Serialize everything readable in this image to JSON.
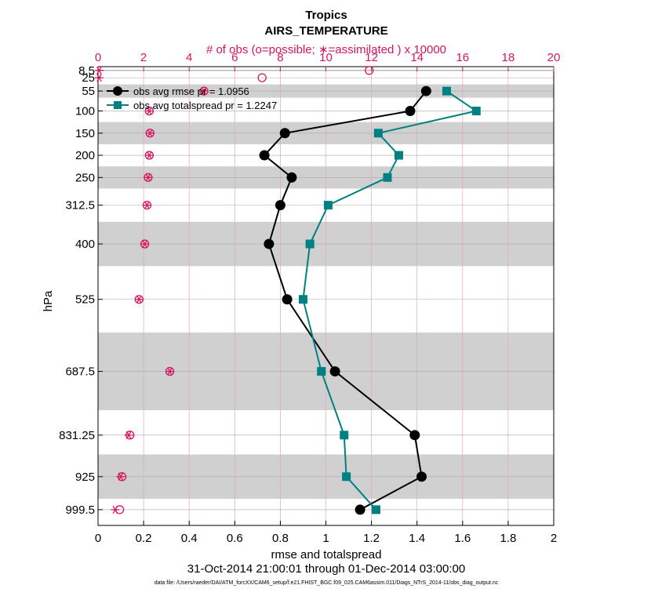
{
  "chart_data": {
    "type": "line",
    "title": "Tropics",
    "subtitle": "AIRS_TEMPERATURE",
    "top_axis_label": "# of obs (o=possible; ∗=assimilated ) x 10000",
    "top_axis_ticks": [
      "0",
      "2",
      "4",
      "6",
      "8",
      "10",
      "12",
      "14",
      "16",
      "18",
      "20"
    ],
    "top_axis_range": [
      0,
      20
    ],
    "xlabel": "rmse and totalspread",
    "x_ticks": [
      "0",
      "0.2",
      "0.4",
      "0.6",
      "0.8",
      "1",
      "1.2",
      "1.4",
      "1.6",
      "1.8",
      "2"
    ],
    "xlim": [
      0,
      2
    ],
    "ylabel": "hPa",
    "levels": [
      {
        "label": "8.5",
        "value": 8.5
      },
      {
        "label": "25",
        "value": 25
      },
      {
        "label": "55",
        "value": 55
      },
      {
        "label": "100",
        "value": 100
      },
      {
        "label": "150",
        "value": 150
      },
      {
        "label": "200",
        "value": 200
      },
      {
        "label": "250",
        "value": 250
      },
      {
        "label": "312.5",
        "value": 312.5
      },
      {
        "label": "400",
        "value": 400
      },
      {
        "label": "525",
        "value": 525
      },
      {
        "label": "687.5",
        "value": 687.5
      },
      {
        "label": "831.25",
        "value": 831.25
      },
      {
        "label": "925",
        "value": 925
      },
      {
        "label": "999.5",
        "value": 999.5
      }
    ],
    "ylim": [
      0,
      1035
    ],
    "shaded_layers": [
      [
        7,
        10
      ],
      [
        40,
        70
      ],
      [
        125,
        175
      ],
      [
        225,
        275
      ],
      [
        350,
        450
      ],
      [
        600,
        775
      ],
      [
        875,
        975
      ]
    ],
    "series": [
      {
        "name": "obs avg rmse",
        "legend": "obs avg rmse pr = 1.0956",
        "color": "#000000",
        "marker": "circle",
        "points": [
          {
            "level": 55,
            "x": 1.44
          },
          {
            "level": 100,
            "x": 1.37
          },
          {
            "level": 150,
            "x": 0.82
          },
          {
            "level": 200,
            "x": 0.73
          },
          {
            "level": 250,
            "x": 0.85
          },
          {
            "level": 312.5,
            "x": 0.8
          },
          {
            "level": 400,
            "x": 0.75
          },
          {
            "level": 525,
            "x": 0.83
          },
          {
            "level": 687.5,
            "x": 1.04
          },
          {
            "level": 831.25,
            "x": 1.39
          },
          {
            "level": 925,
            "x": 1.42
          },
          {
            "level": 999.5,
            "x": 1.15
          }
        ]
      },
      {
        "name": "obs avg totalspread",
        "legend": "obs avg totalspread pr = 1.2247",
        "color": "#008080",
        "marker": "square",
        "points": [
          {
            "level": 55,
            "x": 1.53
          },
          {
            "level": 100,
            "x": 1.66
          },
          {
            "level": 150,
            "x": 1.23
          },
          {
            "level": 200,
            "x": 1.32
          },
          {
            "level": 250,
            "x": 1.27
          },
          {
            "level": 312.5,
            "x": 1.01
          },
          {
            "level": 400,
            "x": 0.93
          },
          {
            "level": 525,
            "x": 0.9
          },
          {
            "level": 687.5,
            "x": 0.98
          },
          {
            "level": 831.25,
            "x": 1.08
          },
          {
            "level": 925,
            "x": 1.09
          },
          {
            "level": 999.5,
            "x": 1.22
          }
        ]
      }
    ],
    "obs_counts_x10000": [
      {
        "level": 8.5,
        "possible": 11.9,
        "assimilated": 0.05
      },
      {
        "level": 25,
        "possible": 7.2,
        "assimilated": 0.05
      },
      {
        "level": 55,
        "possible": 4.65,
        "assimilated": 4.65
      },
      {
        "level": 100,
        "possible": 2.25,
        "assimilated": 2.25
      },
      {
        "level": 150,
        "possible": 2.28,
        "assimilated": 2.28
      },
      {
        "level": 200,
        "possible": 2.25,
        "assimilated": 2.25
      },
      {
        "level": 250,
        "possible": 2.2,
        "assimilated": 2.2
      },
      {
        "level": 312.5,
        "possible": 2.15,
        "assimilated": 2.15
      },
      {
        "level": 400,
        "possible": 2.05,
        "assimilated": 2.05
      },
      {
        "level": 525,
        "possible": 1.8,
        "assimilated": 1.8
      },
      {
        "level": 687.5,
        "possible": 3.15,
        "assimilated": 3.15
      },
      {
        "level": 831.25,
        "possible": 1.4,
        "assimilated": 1.35
      },
      {
        "level": 925,
        "possible": 1.05,
        "assimilated": 1.0
      },
      {
        "level": 999.5,
        "possible": 0.95,
        "assimilated": 0.75
      }
    ],
    "obs_color": "#d6145f",
    "shade_color": "#d0d0d0",
    "time_range": "31-Oct-2014 21:00:01 through 01-Dec-2014 03:00:00",
    "data_file": "data file: /Users/raeder/DAI/ATM_forcXX/CAM6_setup/f.e21.FHIST_BGC.f09_025.CAM6assim.011/Diags_NTrS_2014-11/obs_diag_output.nc"
  }
}
